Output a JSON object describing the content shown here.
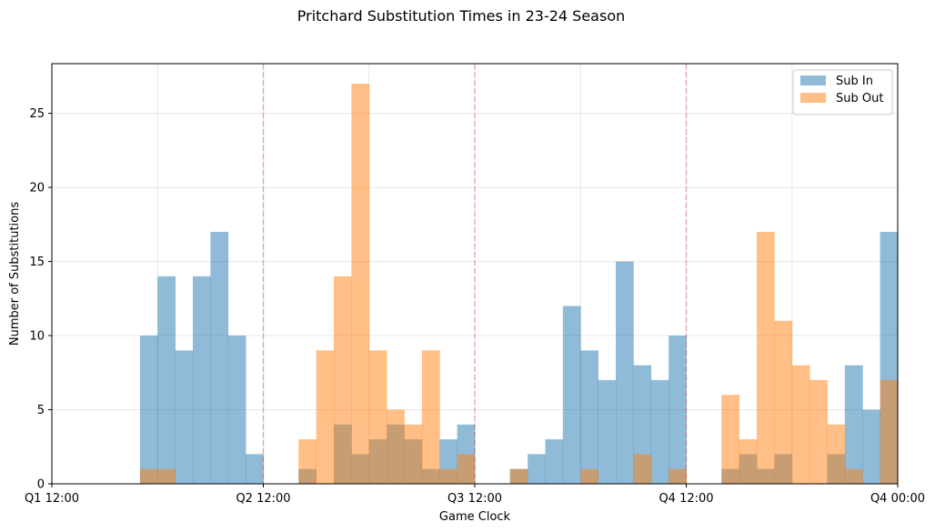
{
  "chart_data": {
    "type": "bar",
    "title": "Pritchard Substitution Times in 23-24 Season",
    "xlabel": "Game Clock",
    "ylabel": "Number of Substitutions",
    "x_ticks": [
      "Q1 12:00",
      "Q2 12:00",
      "Q3 12:00",
      "Q4 12:00",
      "Q4 00:00"
    ],
    "y_ticks": [
      0,
      5,
      10,
      15,
      20,
      25
    ],
    "ylim": [
      0,
      28.35
    ],
    "bins": 48,
    "quarter_lines": [
      1,
      2,
      3
    ],
    "grid": true,
    "legend_position": "top-right",
    "series": [
      {
        "name": "Sub In",
        "color": "#1f77b4",
        "opacity": 0.5,
        "values": [
          0,
          0,
          0,
          0,
          0,
          10,
          14,
          9,
          14,
          17,
          10,
          2,
          0,
          0,
          1,
          0,
          4,
          2,
          3,
          4,
          3,
          1,
          3,
          4,
          0,
          0,
          1,
          2,
          3,
          12,
          9,
          7,
          15,
          8,
          7,
          10,
          0,
          0,
          1,
          2,
          1,
          2,
          0,
          0,
          2,
          8,
          5,
          17
        ]
      },
      {
        "name": "Sub Out",
        "color": "#ff7f0e",
        "opacity": 0.5,
        "values": [
          0,
          0,
          0,
          0,
          0,
          1,
          1,
          0,
          0,
          0,
          0,
          0,
          0,
          0,
          3,
          9,
          14,
          27,
          9,
          5,
          4,
          9,
          1,
          2,
          0,
          0,
          1,
          0,
          0,
          0,
          1,
          0,
          0,
          2,
          0,
          1,
          0,
          0,
          6,
          3,
          17,
          11,
          8,
          7,
          4,
          1,
          0,
          7
        ]
      }
    ]
  }
}
